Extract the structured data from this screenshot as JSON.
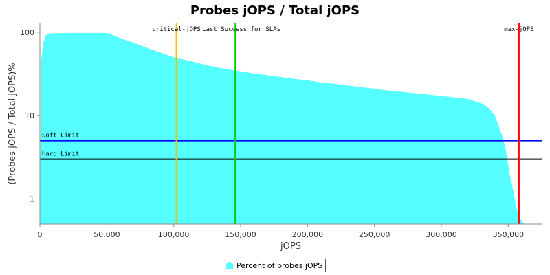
{
  "chart_data": {
    "type": "area",
    "title": "Probes jOPS / Total jOPS",
    "xlabel": "jOPS",
    "ylabel": "(Probes jOPS / Total jOPS)%",
    "y_scale": "log",
    "xlim": [
      0,
      375000
    ],
    "ylim": [
      0.5,
      130
    ],
    "x_ticks": [
      0,
      50000,
      100000,
      150000,
      200000,
      250000,
      300000,
      350000
    ],
    "x_tick_labels": [
      "0",
      "50,000",
      "100,000",
      "150,000",
      "200,000",
      "250,000",
      "300,000",
      "350,000"
    ],
    "y_ticks": [
      1,
      10,
      100
    ],
    "y_tick_labels": [
      "1",
      "10",
      "100"
    ],
    "grid": false,
    "legend": {
      "placement": "bottom",
      "entries": [
        "Percent of probes jOPS"
      ]
    },
    "series": [
      {
        "name": "Percent of probes jOPS",
        "color": "#55ffff",
        "x": [
          0,
          1000,
          2500,
          5000,
          10000,
          20000,
          30000,
          40000,
          50000,
          55000,
          60000,
          70000,
          80000,
          90000,
          100000,
          110000,
          120000,
          130000,
          140000,
          150000,
          160000,
          170000,
          180000,
          190000,
          200000,
          210000,
          220000,
          230000,
          240000,
          250000,
          260000,
          270000,
          280000,
          290000,
          300000,
          310000,
          320000,
          330000,
          335000,
          340000,
          345000,
          348000,
          351000,
          354000,
          356000,
          358000,
          360000,
          362000,
          372000
        ],
        "y": [
          1,
          45,
          75,
          95,
          97,
          98,
          98,
          98,
          98,
          92,
          85,
          75,
          65,
          57,
          50,
          46,
          42,
          38.5,
          36,
          34,
          32,
          30.5,
          29,
          27.5,
          26.5,
          25,
          24,
          23,
          22,
          21,
          20,
          19.3,
          18.6,
          17.9,
          17.2,
          16.5,
          15.8,
          14,
          12.5,
          10,
          6,
          4,
          2,
          1.2,
          0.8,
          0.6,
          0.55,
          0.5,
          0.5
        ]
      }
    ],
    "markers": [
      {
        "label": "critical-jOPS",
        "x": 102000,
        "color": "#ffc000"
      },
      {
        "label": "Last Success for SLAs",
        "x": 146000,
        "color": "#00cc00"
      },
      {
        "label": "max-jOPS",
        "x": 358000,
        "color": "#ff0000"
      }
    ],
    "thresholds": [
      {
        "label": "Soft Limit",
        "y": 5,
        "color": "#0000ff"
      },
      {
        "label": "Hard Limit",
        "y": 3,
        "color": "#000000"
      }
    ]
  }
}
